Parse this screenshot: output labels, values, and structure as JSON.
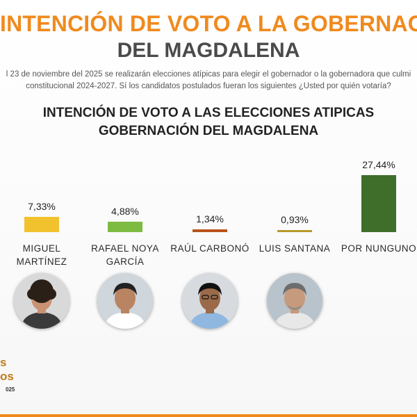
{
  "header": {
    "line1": "INTENCIÓN DE VOTO A LA GOBERNACIÓN",
    "line2": "DEL MAGDALENA"
  },
  "intro": {
    "line1": "l 23 de noviembre del 2025 se realizarán elecciones atípicas para elegir el gobernador o la gobernadora que culmi",
    "line2": "constitucional 2024-2027. Sí los candidatos postulados fueran los siguientes ¿Usted por quién votaría?"
  },
  "chart_title": {
    "line1": "INTENCIÓN DE VOTO A LAS ELECCIONES ATIPICAS",
    "line2": "GOBERNACIÓN DEL MAGDALENA"
  },
  "chart_data": {
    "type": "bar",
    "title": "INTENCIÓN DE VOTO A LAS ELECCIONES ATIPICAS GOBERNACIÓN DEL MAGDALENA",
    "categories": [
      "MIGUEL MARTÍNEZ",
      "RAFAEL NOYA GARCÍA",
      "RAÚL CARBONÓ",
      "LUIS SANTANA",
      "POR NUNGUNO"
    ],
    "values": [
      7.33,
      4.88,
      1.34,
      0.93,
      27.44
    ],
    "value_labels": [
      "7,33%",
      "4,88%",
      "1,34%",
      "0,93%",
      "27,44%"
    ],
    "colors": [
      "#f2c12e",
      "#7dbb42",
      "#b8541c",
      "#b79a2a",
      "#3f6e2a"
    ],
    "ylim": [
      0,
      27.44
    ],
    "grid": false,
    "legend": "none"
  },
  "candidates": [
    {
      "name_line1": "MIGUEL",
      "name_line2": "MARTÍNEZ",
      "photo_icon": "candidate-portrait-icon"
    },
    {
      "name_line1": "RAFAEL NOYA",
      "name_line2": "GARCÍA",
      "photo_icon": "candidate-portrait-icon"
    },
    {
      "name_line1": "RAÚL CARBONÓ",
      "name_line2": "",
      "photo_icon": "candidate-portrait-icon"
    },
    {
      "name_line1": "LUIS SANTANA",
      "name_line2": "",
      "photo_icon": "candidate-portrait-icon"
    },
    {
      "name_line1": "POR NUNGUNO",
      "name_line2": "",
      "photo_icon": ""
    }
  ],
  "footer": {
    "logo_line1": "s",
    "logo_line2": "os",
    "small": "025"
  },
  "colors": {
    "accent_orange": "#f08a1e",
    "title_gray": "#4a4a4a"
  }
}
